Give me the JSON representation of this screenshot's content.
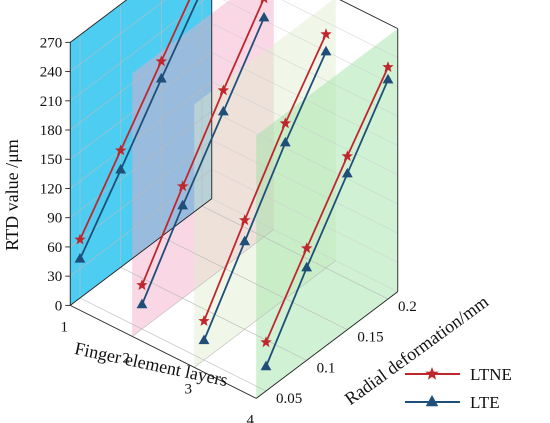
{
  "chart_data": {
    "type": "line",
    "projection": "3d",
    "xlabel": "Finger element layers",
    "ylabel": "Radial deformation/mm",
    "zlabel": "RTD value /μm",
    "x_ticks": [
      "1",
      "2",
      "3",
      "4"
    ],
    "y_ticks": [
      "0.05",
      "0.1",
      "0.15",
      "0.2"
    ],
    "z_ticks": [
      "0",
      "30",
      "60",
      "90",
      "120",
      "150",
      "180",
      "210",
      "240",
      "270"
    ],
    "zlim": [
      0,
      270
    ],
    "grid": true,
    "legend_position": "bottom-right",
    "planes": [
      {
        "x": 1,
        "color": "#2ec4f0"
      },
      {
        "x": 2,
        "color": "#f3a7c6"
      },
      {
        "x": 3,
        "color": "#ddeecc"
      },
      {
        "x": 4,
        "color": "#9ae0a0"
      }
    ],
    "series": [
      {
        "name": "LTNE",
        "marker": "star",
        "color": "#c0272d",
        "lines": [
          {
            "x": 1,
            "points": [
              [
                0.05,
                60
              ],
              [
                0.1,
                120
              ],
              [
                0.15,
                180
              ],
              [
                0.2,
                240
              ]
            ]
          },
          {
            "x": 2,
            "points": [
              [
                0.05,
                45
              ],
              [
                0.1,
                115
              ],
              [
                0.15,
                182
              ],
              [
                0.2,
                245
              ]
            ]
          },
          {
            "x": 3,
            "points": [
              [
                0.05,
                40
              ],
              [
                0.1,
                112
              ],
              [
                0.15,
                180
              ],
              [
                0.2,
                240
              ]
            ]
          },
          {
            "x": 4,
            "points": [
              [
                0.05,
                50
              ],
              [
                0.1,
                115
              ],
              [
                0.15,
                178
              ],
              [
                0.2,
                238
              ]
            ]
          }
        ]
      },
      {
        "name": "LTE",
        "marker": "triangle",
        "color": "#1f4e79",
        "lines": [
          {
            "x": 1,
            "points": [
              [
                0.05,
                40
              ],
              [
                0.1,
                100
              ],
              [
                0.15,
                162
              ],
              [
                0.2,
                222
              ]
            ]
          },
          {
            "x": 2,
            "points": [
              [
                0.05,
                25
              ],
              [
                0.1,
                95
              ],
              [
                0.15,
                160
              ],
              [
                0.2,
                225
              ]
            ]
          },
          {
            "x": 3,
            "points": [
              [
                0.05,
                20
              ],
              [
                0.1,
                90
              ],
              [
                0.15,
                160
              ],
              [
                0.2,
                222
              ]
            ]
          },
          {
            "x": 4,
            "points": [
              [
                0.05,
                25
              ],
              [
                0.1,
                95
              ],
              [
                0.15,
                160
              ],
              [
                0.2,
                225
              ]
            ]
          }
        ]
      }
    ]
  }
}
